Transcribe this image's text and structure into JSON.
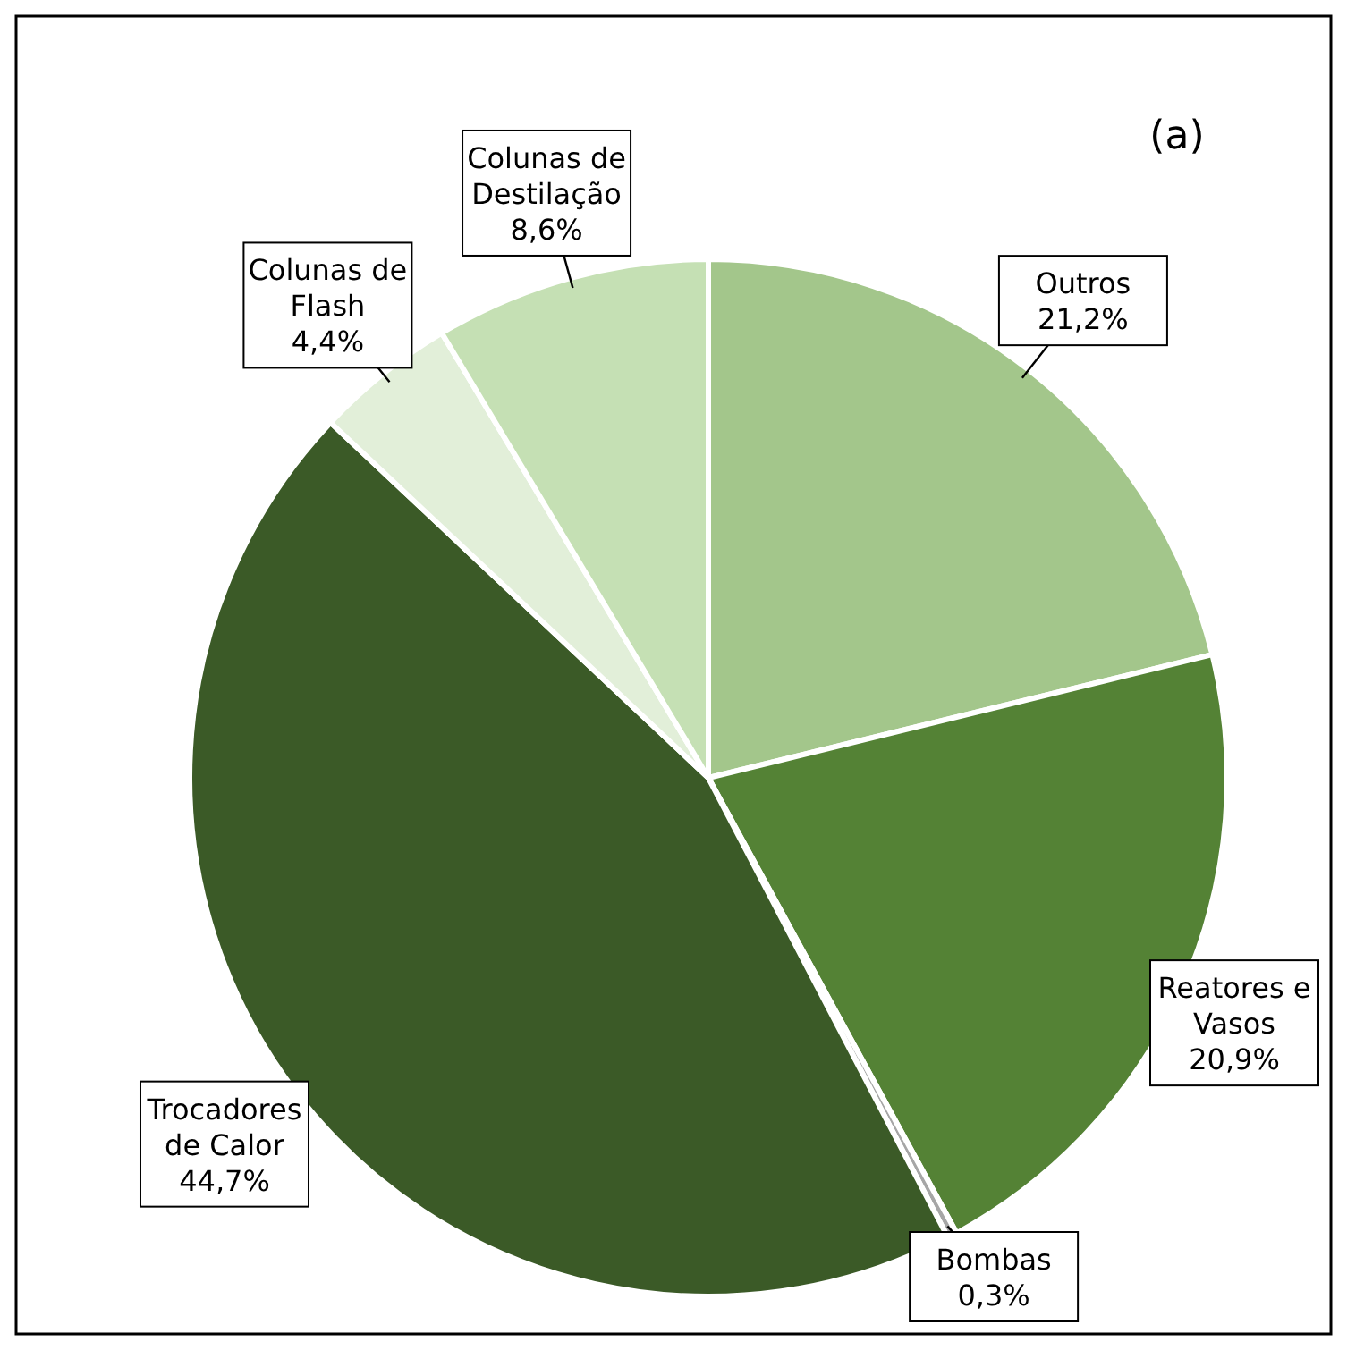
{
  "chart_data": {
    "type": "pie",
    "title": "(a)",
    "categories": [
      "Outros",
      "Reatores e Vasos",
      "Bombas",
      "Trocadores de Calor",
      "Colunas de Flash",
      "Colunas de Destilação"
    ],
    "values": [
      21.2,
      20.9,
      0.3,
      44.7,
      4.4,
      8.6
    ],
    "value_labels": [
      "21,2%",
      "20,9%",
      "0,3%",
      "44,7%",
      "4,4%",
      "8,6%"
    ],
    "colors": [
      "#a3c68b",
      "#548235",
      "#a6a6a6",
      "#3b5a27",
      "#e2efd9",
      "#c5e0b4"
    ]
  }
}
